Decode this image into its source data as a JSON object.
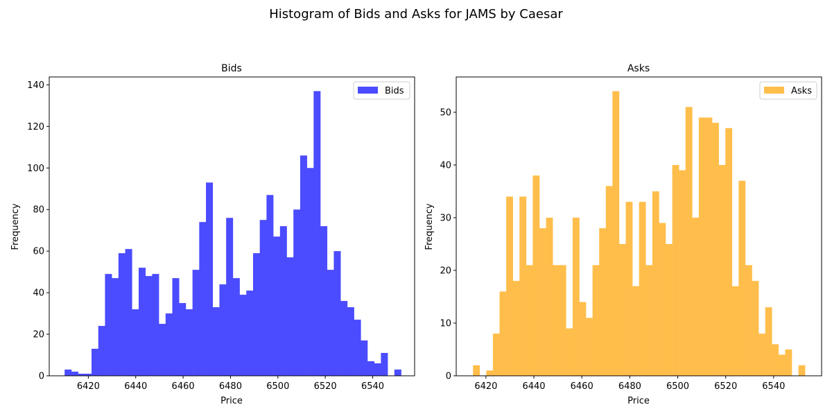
{
  "suptitle": "Histogram of Bids and Asks for JAMS by Caesar",
  "chart_data": [
    {
      "type": "bar",
      "title": "Bids",
      "xlabel": "Price",
      "ylabel": "Frequency",
      "color": "#4b4bff",
      "legend": {
        "label": "Bids",
        "placement": "upper-right"
      },
      "x_range": [
        6403.5,
        6557.7
      ],
      "ylim": [
        0,
        143.8
      ],
      "x_ticks": [
        "6420",
        "6440",
        "6460",
        "6480",
        "6500",
        "6520",
        "6540"
      ],
      "y_ticks": [
        "0",
        "20",
        "40",
        "60",
        "80",
        "100",
        "120",
        "140"
      ],
      "bin_start": 6410.0,
      "bin_width": 2.84,
      "values": [
        3,
        2,
        1,
        1,
        13,
        24,
        49,
        47,
        59,
        61,
        32,
        52,
        48,
        49,
        25,
        30,
        47,
        35,
        32,
        51,
        74,
        93,
        33,
        44,
        76,
        47,
        39,
        41,
        59,
        75,
        87,
        67,
        72,
        57,
        80,
        106,
        100,
        137,
        72,
        51,
        60,
        36,
        33,
        27,
        17,
        7,
        6,
        11,
        0,
        3
      ]
    },
    {
      "type": "bar",
      "title": "Asks",
      "xlabel": "Price",
      "ylabel": "Frequency",
      "color": "#ffbe4b",
      "legend": {
        "label": "Asks",
        "placement": "upper-right"
      },
      "x_range": [
        6407.6,
        6560.0
      ],
      "ylim": [
        0,
        56.7
      ],
      "x_ticks": [
        "6420",
        "6440",
        "6460",
        "6480",
        "6500",
        "6520",
        "6540"
      ],
      "y_ticks": [
        "0",
        "10",
        "20",
        "30",
        "40",
        "50"
      ],
      "bin_start": 6414.6,
      "bin_width": 2.77,
      "values": [
        2,
        0,
        1,
        8,
        16,
        34,
        18,
        34,
        21,
        38,
        28,
        30,
        21,
        21,
        9,
        30,
        14,
        11,
        21,
        28,
        36,
        54,
        25,
        33,
        17,
        33,
        21,
        35,
        29,
        25,
        40,
        39,
        51,
        30,
        49,
        49,
        48,
        40,
        47,
        17,
        37,
        21,
        18,
        8,
        13,
        6,
        4,
        5,
        0,
        2
      ]
    }
  ]
}
